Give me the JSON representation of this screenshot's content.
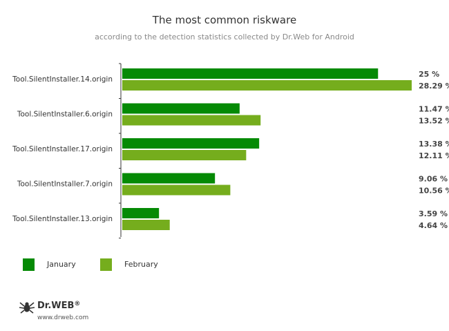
{
  "header": {
    "title": "The most common riskware",
    "subtitle": "according to the detection statistics collected by Dr.Web for Android"
  },
  "colors": {
    "january": "#058a05",
    "february": "#75ad1d",
    "axis": "#333333"
  },
  "chart_data": {
    "type": "bar",
    "orientation": "horizontal",
    "categories": [
      "Tool.SilentInstaller.14.origin",
      "Tool.SilentInstaller.6.origin",
      "Tool.SilentInstaller.17.origin",
      "Tool.SilentInstaller.7.origin",
      "Tool.SilentInstaller.13.origin"
    ],
    "series": [
      {
        "name": "January",
        "values": [
          25,
          11.47,
          13.38,
          9.06,
          3.59
        ],
        "labels": [
          "25 %",
          "11.47 %",
          "13.38 %",
          "9.06 %",
          "3.59 %"
        ]
      },
      {
        "name": "February",
        "values": [
          28.29,
          13.52,
          12.11,
          10.56,
          4.64
        ],
        "labels": [
          "28.29 %",
          "13.52 %",
          "12.11 %",
          "10.56 %",
          "4.64 %"
        ]
      }
    ],
    "unit": "%",
    "xlim": [
      0,
      28.29
    ],
    "grid": false,
    "legend_position": "bottom-left"
  },
  "footer": {
    "logo_icon": "spider-icon",
    "brand": "Dr.WEB",
    "trademark": "®",
    "url": "www.drweb.com"
  }
}
